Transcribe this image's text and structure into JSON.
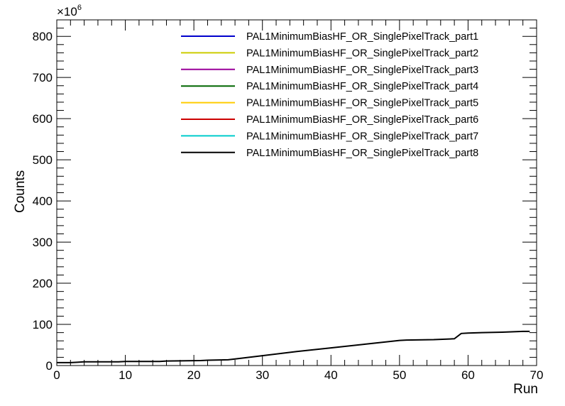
{
  "chart_data": {
    "type": "line",
    "xlabel": "Run",
    "ylabel": "Counts",
    "y_exponent_label": "×10",
    "y_exponent_power": "6",
    "xlim": [
      0,
      70
    ],
    "ylim": [
      0,
      840
    ],
    "x_ticks": [
      0,
      10,
      20,
      30,
      40,
      50,
      60,
      70
    ],
    "y_ticks": [
      0,
      100,
      200,
      300,
      400,
      500,
      600,
      700,
      800
    ],
    "x_tick_labels": [
      "0",
      "10",
      "20",
      "30",
      "40",
      "50",
      "60",
      "70"
    ],
    "y_tick_labels": [
      "0",
      "100",
      "200",
      "300",
      "400",
      "500",
      "600",
      "700",
      "800"
    ],
    "grid": false,
    "legend_position": "top-right",
    "series": [
      {
        "name": "PAL1MinimumBiasHF_OR_SinglePixelTrack_part1",
        "color": "#0000cc"
      },
      {
        "name": "PAL1MinimumBiasHF_OR_SinglePixelTrack_part2",
        "color": "#cccc00"
      },
      {
        "name": "PAL1MinimumBiasHF_OR_SinglePixelTrack_part3",
        "color": "#990099"
      },
      {
        "name": "PAL1MinimumBiasHF_OR_SinglePixelTrack_part4",
        "color": "#006600"
      },
      {
        "name": "PAL1MinimumBiasHF_OR_SinglePixelTrack_part5",
        "color": "#ffcc00"
      },
      {
        "name": "PAL1MinimumBiasHF_OR_SinglePixelTrack_part6",
        "color": "#cc0000"
      },
      {
        "name": "PAL1MinimumBiasHF_OR_SinglePixelTrack_part7",
        "color": "#00cccc"
      },
      {
        "name": "PAL1MinimumBiasHF_OR_SinglePixelTrack_part8",
        "color": "#000000",
        "x": [
          0,
          2,
          3,
          4,
          9,
          10,
          15,
          16,
          21,
          22,
          25,
          26,
          30,
          35,
          40,
          45,
          50,
          51,
          55,
          58,
          59,
          60,
          62,
          65,
          68,
          69
        ],
        "y": [
          7,
          7,
          8,
          9,
          9,
          10,
          10,
          11,
          12,
          13,
          14,
          16,
          24,
          34,
          43,
          52,
          61,
          62,
          63,
          65,
          78,
          79,
          80,
          81,
          83,
          83
        ]
      }
    ]
  }
}
